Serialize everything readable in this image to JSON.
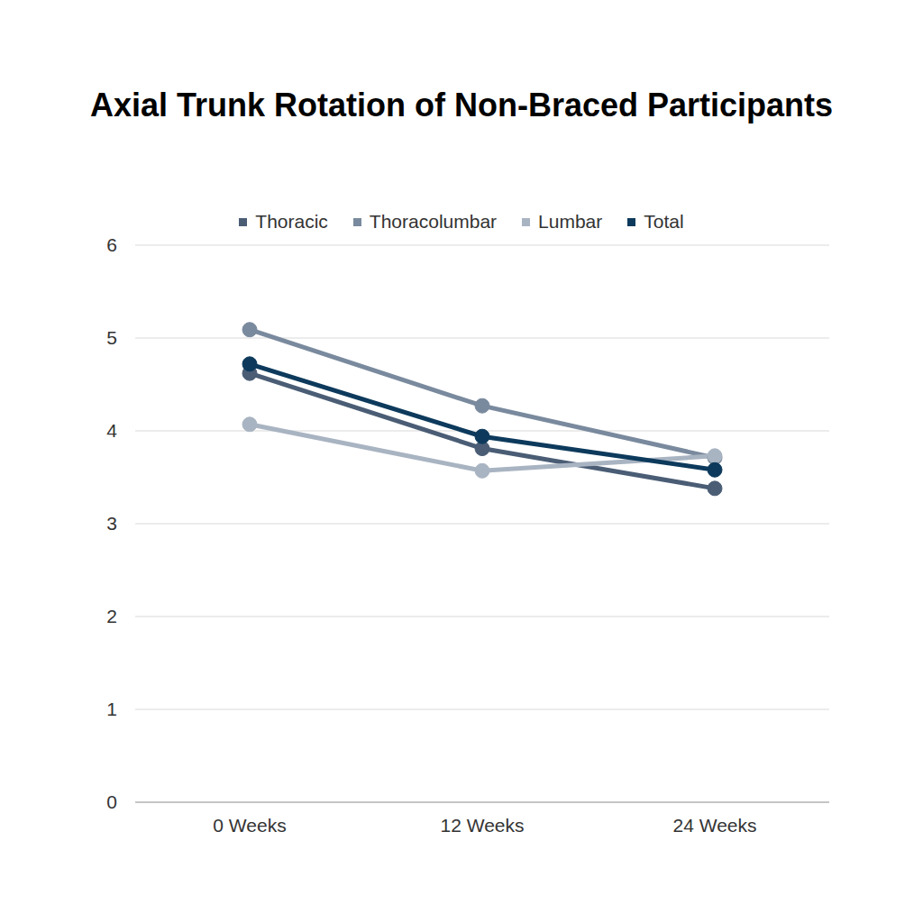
{
  "chart_data": {
    "type": "line",
    "title": "Axial Trunk Rotation of Non-Braced Participants",
    "categories": [
      "0 Weeks",
      "12 Weeks",
      "24 Weeks"
    ],
    "series": [
      {
        "name": "Thoracic",
        "color": "#4a5d75",
        "values": [
          4.62,
          3.81,
          3.38
        ]
      },
      {
        "name": "Thoracolumbar",
        "color": "#7a8a9e",
        "values": [
          5.09,
          4.27,
          3.71
        ]
      },
      {
        "name": "Lumbar",
        "color": "#a9b4c2",
        "values": [
          4.07,
          3.57,
          3.73
        ]
      },
      {
        "name": "Total",
        "color": "#0d3a5c",
        "values": [
          4.72,
          3.94,
          3.58
        ]
      }
    ],
    "ylim": [
      0,
      6
    ],
    "yticks": [
      0,
      1,
      2,
      3,
      4,
      5,
      6
    ],
    "grid": true,
    "legend": "top",
    "marker": "circle"
  }
}
